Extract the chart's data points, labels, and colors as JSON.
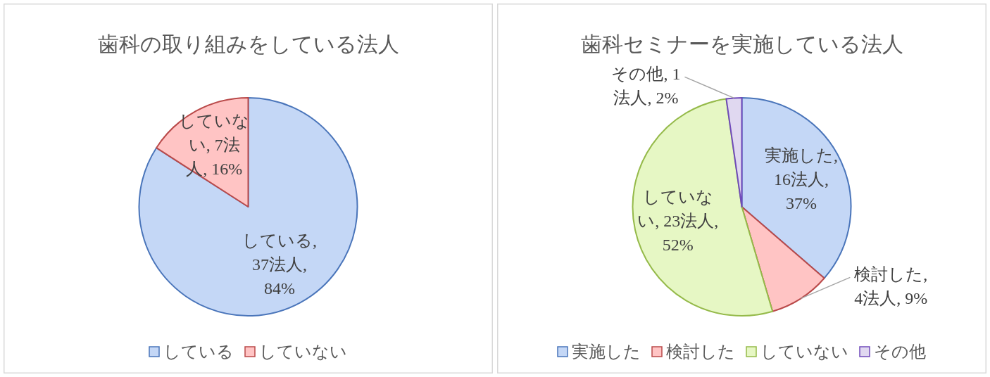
{
  "chart_data": [
    {
      "type": "pie",
      "title": "歯科の取り組みをしている法人",
      "categories": [
        "している",
        "していない"
      ],
      "values": [
        37,
        7
      ],
      "colors": [
        "#c4d7f6",
        "#ffc4c4"
      ],
      "value_labels": [
        "している, 37法人, 84%",
        "していない, 7法人, 16%"
      ],
      "legend": "bottom"
    },
    {
      "type": "pie",
      "title": "歯科セミナーを実施している法人",
      "categories": [
        "実施した",
        "検討した",
        "していない",
        "その他"
      ],
      "values": [
        16,
        4,
        23,
        1
      ],
      "colors": [
        "#c4d7f6",
        "#ffc4c4",
        "#e6f7c4",
        "#e0d8f0"
      ],
      "value_labels": [
        "実施した, 16法人, 37%",
        "検討した, 4法人, 9%",
        "していない, 23法人, 52%",
        "その他, 1法人, 2%"
      ],
      "legend": "bottom"
    }
  ]
}
